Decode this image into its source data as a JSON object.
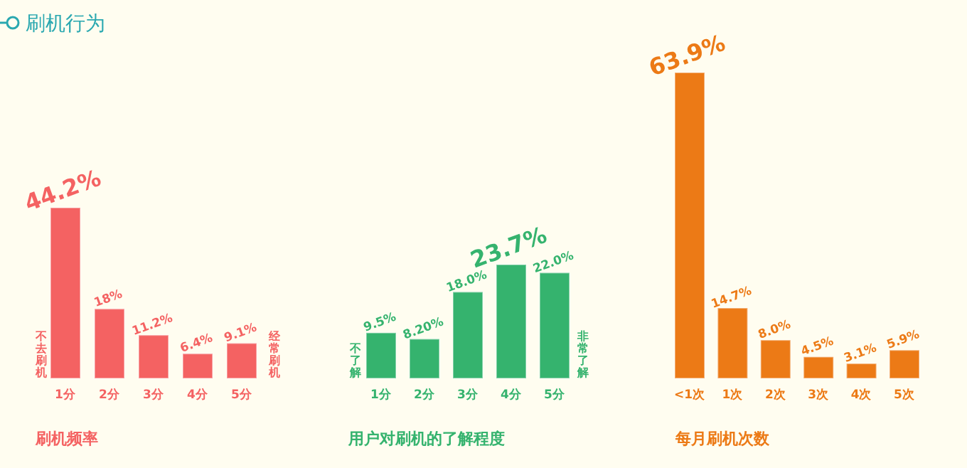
{
  "chart_data": [
    {
      "type": "bar",
      "title": "刷机行为",
      "xlabel": "刷机频率",
      "color": "#f46262",
      "categories": [
        "1分",
        "2分",
        "3分",
        "4分",
        "5分"
      ],
      "values": [
        44.2,
        18,
        11.2,
        6.4,
        9.1
      ],
      "value_labels": [
        "44.2%",
        "18%",
        "11.2%",
        "6.4%",
        "9.1%"
      ],
      "annotations": [
        "不去刷机",
        "经常刷机"
      ]
    },
    {
      "type": "bar",
      "xlabel": "用户对刷机的了解程度",
      "color": "#35b36e",
      "categories": [
        "1分",
        "2分",
        "3分",
        "4分",
        "5分"
      ],
      "values": [
        9.5,
        8.2,
        18.0,
        23.7,
        22.0
      ],
      "value_labels": [
        "9.5%",
        "8.20%",
        "18.0%",
        "23.7%",
        "22.0%"
      ],
      "annotations": [
        "不了解",
        "非常了解"
      ]
    },
    {
      "type": "bar",
      "xlabel": "每月刷机次数",
      "color": "#ec7a16",
      "categories": [
        "<1次",
        "1次",
        "2次",
        "3次",
        "4次",
        "5次"
      ],
      "values": [
        63.9,
        14.7,
        8.0,
        4.5,
        3.1,
        5.9
      ],
      "value_labels": [
        "63.9%",
        "14.7%",
        "8.0%",
        "4.5%",
        "3.1%",
        "5.9%"
      ]
    }
  ]
}
